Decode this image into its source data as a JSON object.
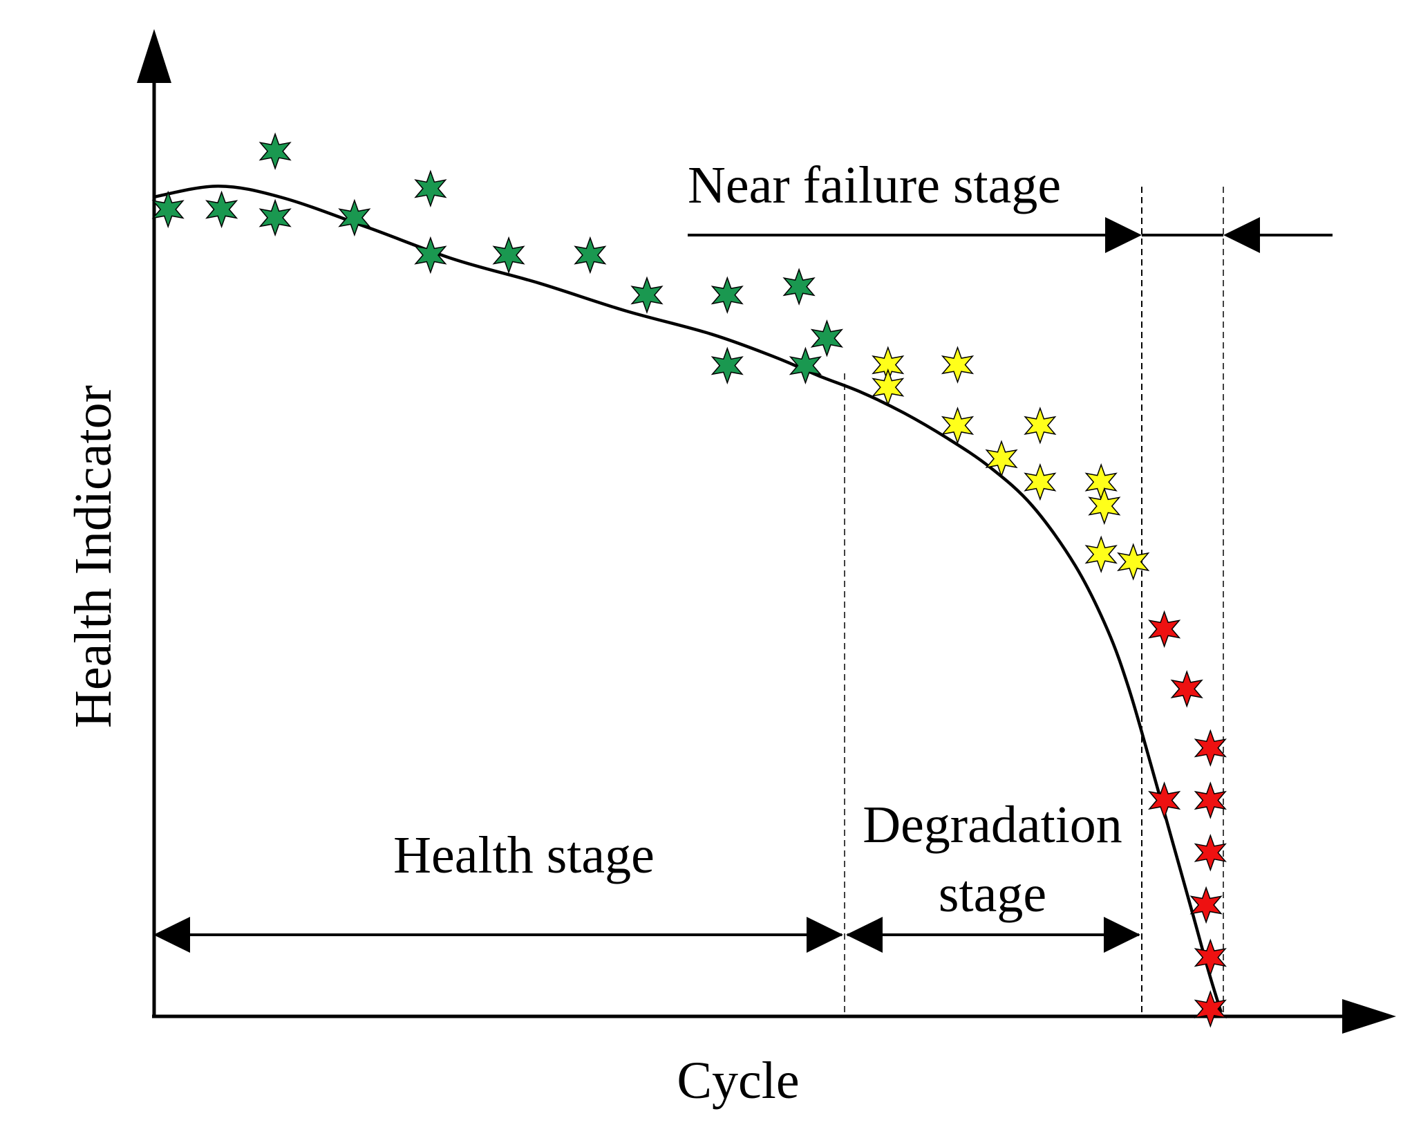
{
  "chart_data": {
    "type": "scatter",
    "title": "",
    "xlabel": "Cycle",
    "ylabel": "Health Indicator",
    "stage_labels": {
      "health": "Health stage",
      "degradation_line1": "Degradation",
      "degradation_line2": "stage",
      "near_failure": "Near failure stage"
    },
    "colors": {
      "health": "#1a9850",
      "degradation": "#ffff1a",
      "near_failure": "#ee1111",
      "curve": "#000000",
      "axis": "#000000"
    },
    "xlim": [
      0,
      100
    ],
    "ylim": [
      0,
      100
    ],
    "stage_boundaries": [
      64.3,
      92.0,
      99.6
    ],
    "curve": [
      [
        0,
        98.6
      ],
      [
        6,
        99.9
      ],
      [
        12,
        98.5
      ],
      [
        20,
        94.9
      ],
      [
        28,
        91.1
      ],
      [
        36,
        88.2
      ],
      [
        44,
        84.9
      ],
      [
        52,
        82.1
      ],
      [
        58,
        79.3
      ],
      [
        62,
        77.1
      ],
      [
        66,
        75.1
      ],
      [
        70,
        72.6
      ],
      [
        74,
        69.6
      ],
      [
        78,
        66.1
      ],
      [
        82,
        61.4
      ],
      [
        86,
        54.2
      ],
      [
        89,
        46.5
      ],
      [
        91,
        39.4
      ],
      [
        93,
        30.5
      ],
      [
        95,
        21.3
      ],
      [
        97,
        12.1
      ],
      [
        98.5,
        5.1
      ],
      [
        99.6,
        0.5
      ]
    ],
    "series": [
      {
        "name": "Health stage",
        "points": [
          [
            1.3,
            97.1
          ],
          [
            6.3,
            97.1
          ],
          [
            11.3,
            104.1
          ],
          [
            11.3,
            96.1
          ],
          [
            18.7,
            96.1
          ],
          [
            25.8,
            99.6
          ],
          [
            25.8,
            91.6
          ],
          [
            33.1,
            91.6
          ],
          [
            40.7,
            91.6
          ],
          [
            46.0,
            86.8
          ],
          [
            53.5,
            86.8
          ],
          [
            53.5,
            78.3
          ],
          [
            60.2,
            87.8
          ],
          [
            60.8,
            78.3
          ],
          [
            62.8,
            81.6
          ]
        ]
      },
      {
        "name": "Degradation stage",
        "points": [
          [
            68.5,
            78.4
          ],
          [
            68.5,
            75.7
          ],
          [
            75.0,
            78.4
          ],
          [
            75.0,
            71.1
          ],
          [
            79.1,
            67.1
          ],
          [
            82.7,
            71.1
          ],
          [
            82.7,
            64.3
          ],
          [
            88.4,
            64.3
          ],
          [
            88.7,
            61.4
          ],
          [
            88.4,
            55.6
          ],
          [
            91.4,
            54.7
          ]
        ]
      },
      {
        "name": "Near failure stage",
        "points": [
          [
            94.3,
            46.6
          ],
          [
            96.4,
            39.4
          ],
          [
            98.6,
            32.3
          ],
          [
            94.3,
            26.0
          ],
          [
            98.6,
            26.0
          ],
          [
            98.6,
            19.7
          ],
          [
            98.2,
            13.4
          ],
          [
            98.6,
            7.1
          ],
          [
            98.6,
            0.9
          ]
        ]
      }
    ]
  }
}
